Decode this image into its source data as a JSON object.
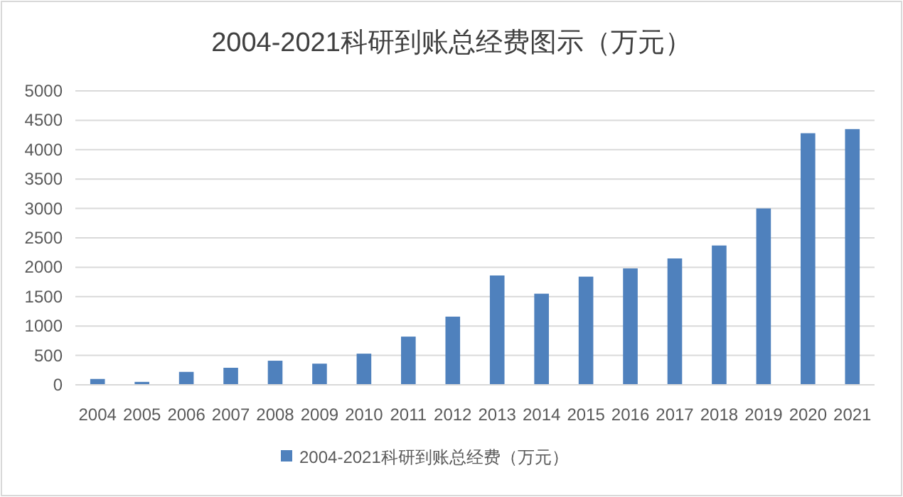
{
  "chart_data": {
    "type": "bar",
    "title": "2004-2021科研到账总经费图示（万元）",
    "categories": [
      "2004",
      "2005",
      "2006",
      "2007",
      "2008",
      "2009",
      "2010",
      "2011",
      "2012",
      "2013",
      "2014",
      "2015",
      "2016",
      "2017",
      "2018",
      "2019",
      "2020",
      "2021"
    ],
    "series": [
      {
        "name": "2004-2021科研到账总经费（万元）",
        "color": "#4f81bd",
        "values": [
          100,
          50,
          220,
          290,
          410,
          360,
          530,
          820,
          1160,
          1860,
          1550,
          1840,
          1980,
          2150,
          2370,
          3000,
          4280,
          4350
        ]
      }
    ],
    "ylim": [
      0,
      5000
    ],
    "yticks": [
      0,
      500,
      1000,
      1500,
      2000,
      2500,
      3000,
      3500,
      4000,
      4500,
      5000
    ],
    "grid": "y",
    "legend": "bottom"
  }
}
